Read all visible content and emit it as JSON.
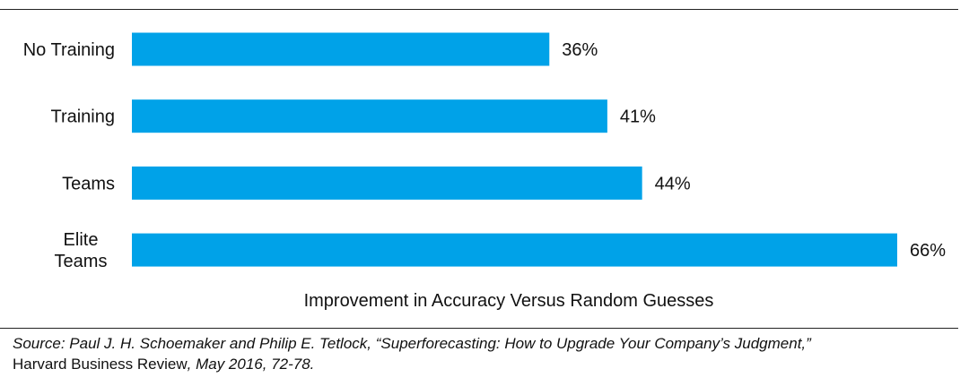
{
  "chart_data": {
    "type": "bar",
    "orientation": "horizontal",
    "categories": [
      "No Training",
      "Training",
      "Teams",
      "Elite Teams"
    ],
    "category_lines": [
      [
        "No Training"
      ],
      [
        "Training"
      ],
      [
        "Teams"
      ],
      [
        "Elite",
        "Teams"
      ]
    ],
    "values": [
      36,
      41,
      44,
      66
    ],
    "value_labels": [
      "36%",
      "41%",
      "44%",
      "66%"
    ],
    "xlabel": "Improvement in Accuracy Versus Random Guesses",
    "ylabel": "",
    "title": "",
    "xlim": [
      0,
      66
    ],
    "bar_color": "#00A2E8",
    "grid": false,
    "legend": "none"
  },
  "source": {
    "part1": "Source: Paul J. H. Schoemaker and Philip E. Tetlock, “Superforecasting: How to Upgrade Your Company’s Judgment,”",
    "part2": "Harvard Business Review",
    "part3": ", May 2016, 72-78."
  }
}
